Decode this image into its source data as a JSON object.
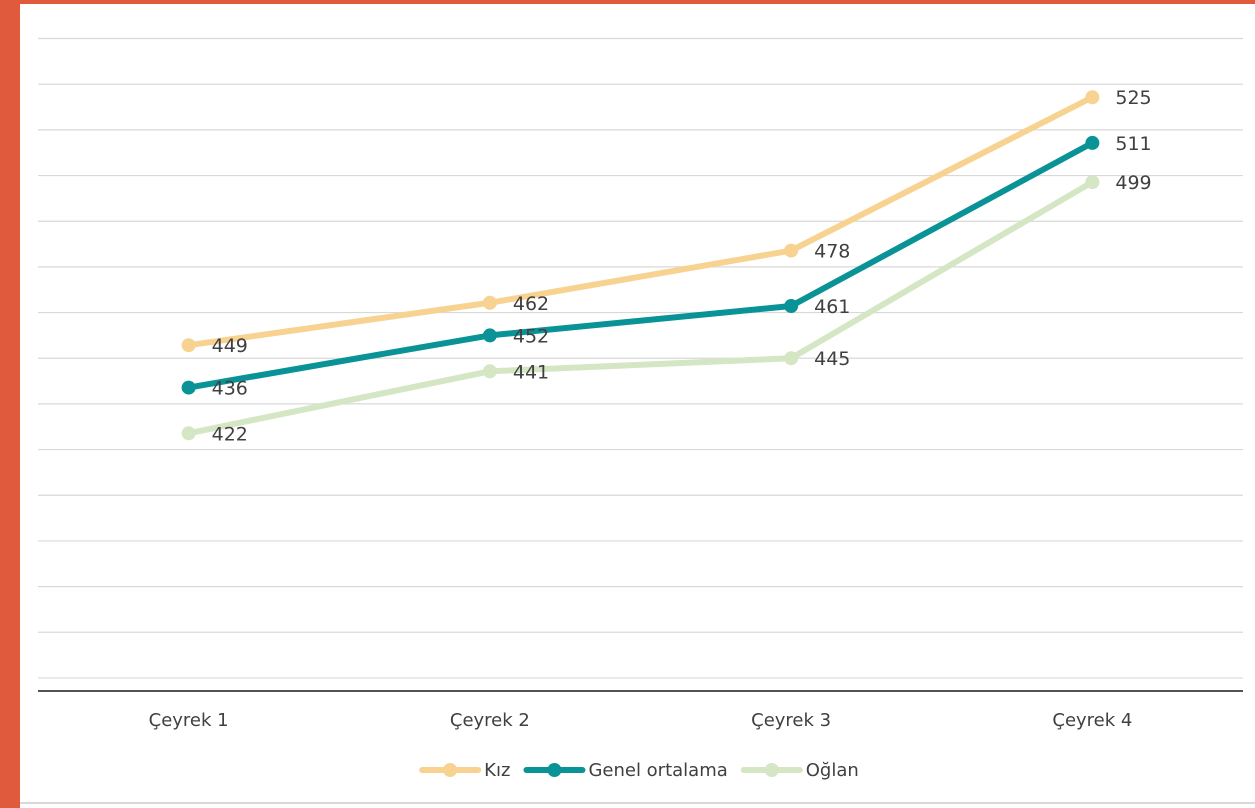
{
  "theme": {
    "border_color": "#e05a3e",
    "background": "#ffffff"
  },
  "chart_data": {
    "type": "line",
    "categories": [
      "Çeyrek 1",
      "Çeyrek 2",
      "Çeyrek 3",
      "Çeyrek 4"
    ],
    "series": [
      {
        "name": "Kız",
        "color": "#f7d291",
        "values": [
          449,
          462,
          478,
          525
        ]
      },
      {
        "name": "Genel ortalama",
        "color": "#0a9396",
        "values": [
          436,
          452,
          461,
          511
        ]
      },
      {
        "name": "Oğlan",
        "color": "#d4e6c3",
        "values": [
          422,
          441,
          445,
          499
        ]
      }
    ],
    "ylim": [
      343,
      545
    ],
    "grid": true,
    "legend": "bottom",
    "data_labels": true
  }
}
